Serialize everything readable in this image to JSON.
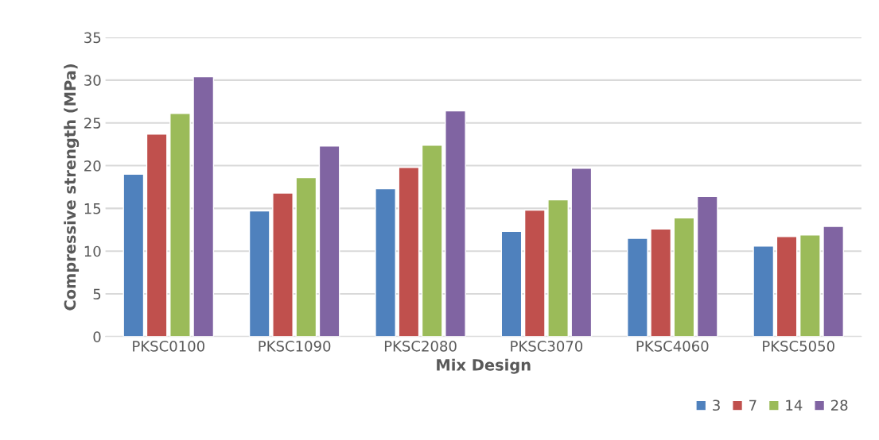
{
  "chart_data": {
    "type": "bar",
    "xlabel": "Mix Design",
    "ylabel": "Compressive strength (MPa)",
    "categories": [
      "PKSC0100",
      "PKSC1090",
      "PKSC2080",
      "PKSC3070",
      "PKSC4060",
      "PKSC5050"
    ],
    "series": [
      {
        "name": "3",
        "color": "#4f81bd",
        "values": [
          19.0,
          14.7,
          17.3,
          12.3,
          11.5,
          10.6
        ]
      },
      {
        "name": "7",
        "color": "#c0504d",
        "values": [
          23.7,
          16.8,
          19.8,
          14.8,
          12.6,
          11.7
        ]
      },
      {
        "name": "14",
        "color": "#9bbb59",
        "values": [
          26.1,
          18.6,
          22.4,
          16.0,
          13.9,
          11.9
        ]
      },
      {
        "name": "28",
        "color": "#8064a2",
        "values": [
          30.4,
          22.3,
          26.4,
          19.7,
          16.4,
          12.9
        ]
      }
    ],
    "ylim": [
      0,
      35
    ],
    "yticks": [
      0,
      5,
      10,
      15,
      20,
      25,
      30,
      35
    ],
    "grid": "y",
    "legend": "bottom right"
  }
}
